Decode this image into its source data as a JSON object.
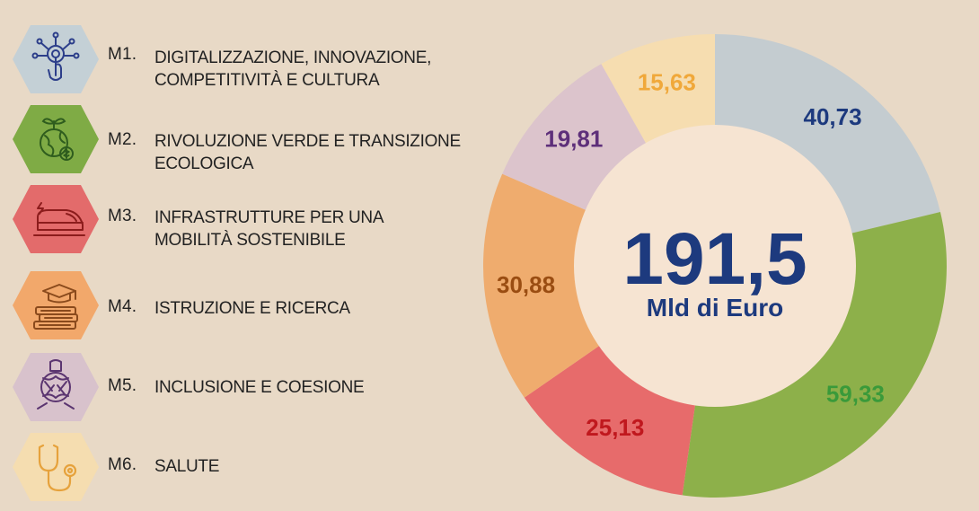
{
  "legend": [
    {
      "code": "M1.",
      "label": "DIGITALIZZAZIONE, INNOVAZIONE,\nCOMPETITIVITÀ E CULTURA",
      "icon": "digital-touch-icon",
      "hex_color": "#c4d0d6",
      "icon_color": "#2c3e8a"
    },
    {
      "code": "M2.",
      "label": "RIVOLUZIONE VERDE E TRANSIZIONE\nECOLOGICA",
      "icon": "green-globe-icon",
      "hex_color": "#7fab45",
      "icon_color": "#2f5d1e"
    },
    {
      "code": "M3.",
      "label": "INFRASTRUTTURE PER UNA\nMOBILITÀ SOSTENIBILE",
      "icon": "train-icon",
      "hex_color": "#e36b6b",
      "icon_color": "#8c1c1c"
    },
    {
      "code": "M4.",
      "label": "ISTRUZIONE E RICERCA",
      "icon": "graduation-books-icon",
      "hex_color": "#f2a86b",
      "icon_color": "#8a4a1c"
    },
    {
      "code": "M5.",
      "label": "INCLUSIONE E COESIONE",
      "icon": "joined-hands-icon",
      "hex_color": "#d8c2cc",
      "icon_color": "#5b3570"
    },
    {
      "code": "M6.",
      "label": "SALUTE",
      "icon": "stethoscope-icon",
      "hex_color": "#f5ddb0",
      "icon_color": "#e6a23c"
    }
  ],
  "chart_data": {
    "type": "pie",
    "donut": true,
    "categories": [
      "M1",
      "M2",
      "M3",
      "M4",
      "M5",
      "M6"
    ],
    "values": [
      40.73,
      59.33,
      25.13,
      30.88,
      19.81,
      15.63
    ],
    "value_labels": [
      "40,73",
      "59,33",
      "25,13",
      "30,88",
      "19,81",
      "15,63"
    ],
    "slice_colors": [
      "#c4ccd0",
      "#8db04a",
      "#e76b6b",
      "#efac6e",
      "#dcc4cc",
      "#f6ddb0"
    ],
    "label_colors": [
      "#1d3a7e",
      "#3a9a3a",
      "#c0181e",
      "#9a4d12",
      "#5e2f7a",
      "#f0a83a"
    ],
    "start_angle_deg": 0,
    "direction": "clockwise",
    "center_value": "191,5",
    "center_unit": "Mld di Euro"
  }
}
